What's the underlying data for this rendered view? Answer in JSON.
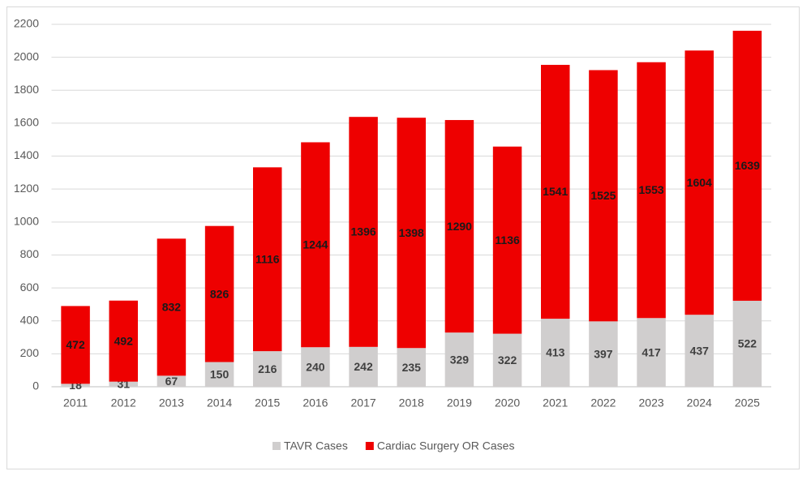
{
  "chart_data": {
    "type": "stacked_bar",
    "categories": [
      "2011",
      "2012",
      "2013",
      "2014",
      "2015",
      "2016",
      "2017",
      "2018",
      "2019",
      "2020",
      "2021",
      "2022",
      "2023",
      "2024",
      "2025"
    ],
    "series": [
      {
        "name": "TAVR Cases",
        "color": "#d0cece",
        "values": [
          18,
          31,
          67,
          150,
          216,
          240,
          242,
          235,
          329,
          322,
          413,
          397,
          417,
          437,
          522
        ]
      },
      {
        "name": "Cardiac Surgery OR Cases",
        "color": "#ee0000",
        "values": [
          472,
          492,
          832,
          826,
          1116,
          1244,
          1396,
          1398,
          1290,
          1136,
          1541,
          1525,
          1553,
          1604,
          1639
        ]
      }
    ],
    "ylim": [
      0,
      2200
    ],
    "yticks": [
      0,
      200,
      400,
      600,
      800,
      1000,
      1200,
      1400,
      1600,
      1800,
      2000,
      2200
    ],
    "grid": true,
    "legend": "bottom"
  }
}
